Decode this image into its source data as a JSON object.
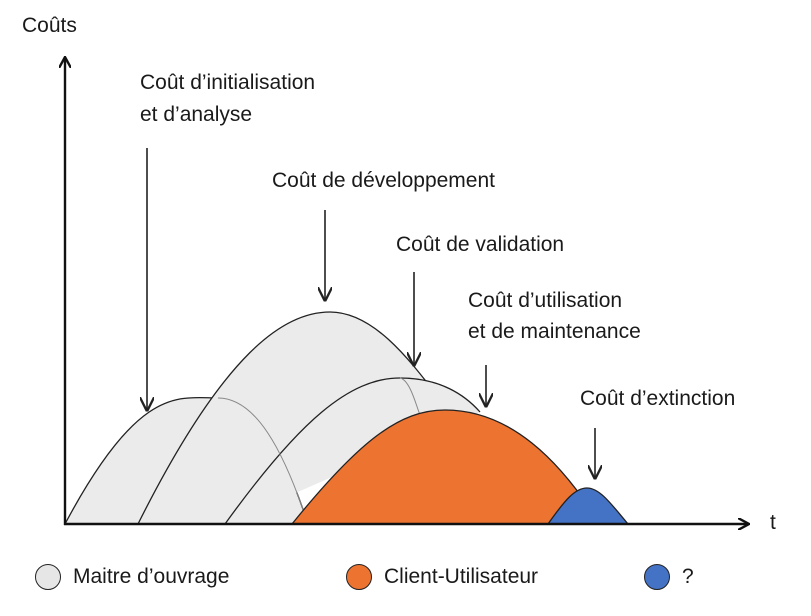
{
  "axes": {
    "y_label": "Coûts",
    "x_label": "t"
  },
  "phases": [
    {
      "id": "init",
      "label_lines": [
        "Coût d’initialisation",
        "et d’analyse"
      ]
    },
    {
      "id": "dev",
      "label_lines": [
        "Coût de développement"
      ]
    },
    {
      "id": "valid",
      "label_lines": [
        "Coût de validation"
      ]
    },
    {
      "id": "use",
      "label_lines": [
        "Coût d’utilisation",
        "et de maintenance"
      ]
    },
    {
      "id": "ext",
      "label_lines": [
        "Coût d’extinction"
      ]
    }
  ],
  "legend": [
    {
      "label": "Maitre d’ouvrage",
      "color": "#e6e6e6"
    },
    {
      "label": "Client-Utilisateur",
      "color": "#ed7331"
    },
    {
      "label": "?",
      "color": "#4472c4"
    }
  ],
  "colors": {
    "light_fill": "#ebebeb",
    "orange_fill": "#ed7331",
    "blue_fill": "#4472c4",
    "stroke": "#222222"
  }
}
